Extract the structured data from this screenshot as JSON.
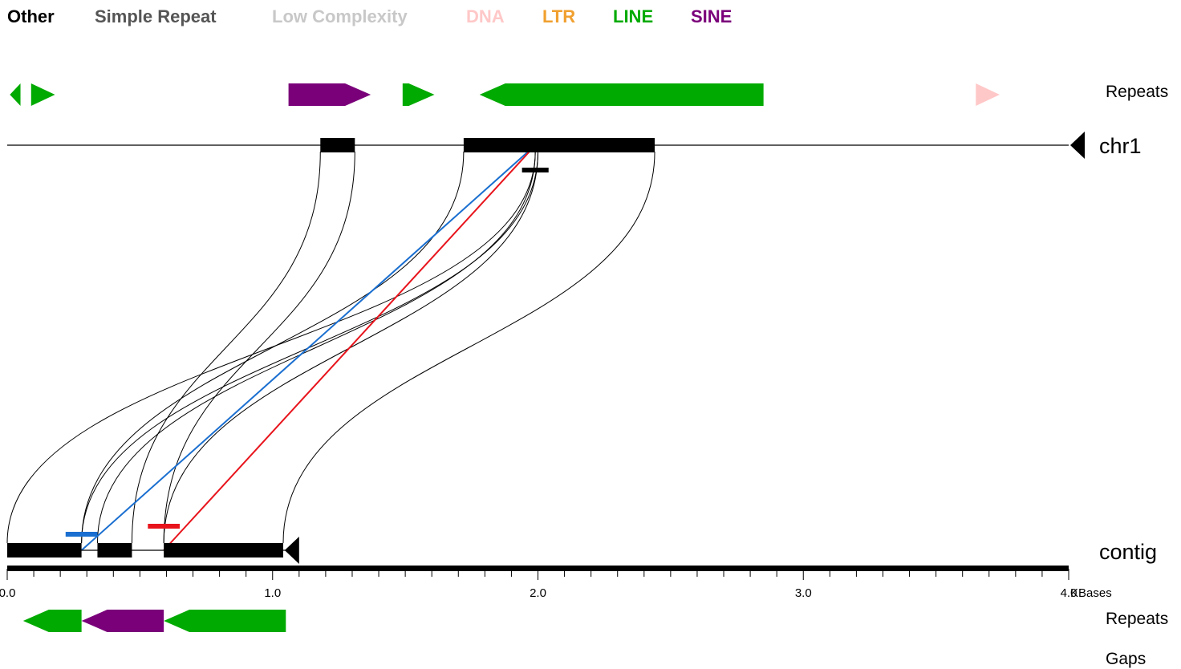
{
  "legend": [
    {
      "label": "Other",
      "color": "#000000"
    },
    {
      "label": "Simple Repeat",
      "color": "#555555"
    },
    {
      "label": "Low Complexity",
      "color": "#c8c8c8"
    },
    {
      "label": "DNA",
      "color": "#ffc8c8"
    },
    {
      "label": "LTR",
      "color": "#f0a030"
    },
    {
      "label": "LINE",
      "color": "#00aa00"
    },
    {
      "label": "SINE",
      "color": "#7a007a"
    }
  ],
  "tracks": {
    "top_repeats_label": "Repeats",
    "chr1_label": "chr1",
    "contig_label": "contig",
    "bottom_repeats_label": "Repeats",
    "gaps_label": "Gaps"
  },
  "axis": {
    "unit": "KBases",
    "start": 0.0,
    "end": 4.0,
    "major_ticks": [
      {
        "value": 0.0,
        "label": "0.0"
      },
      {
        "value": 1.0,
        "label": "1.0"
      },
      {
        "value": 2.0,
        "label": "2.0"
      },
      {
        "value": 3.0,
        "label": "3.0"
      },
      {
        "value": 4.0,
        "label": "4.0"
      }
    ],
    "minor_step": 0.1
  },
  "chart_data": {
    "type": "genome-alignment",
    "chr1": {
      "orientation": "reverse",
      "repeats": [
        {
          "start": 0.01,
          "end": 0.05,
          "strand": "-",
          "class": "LINE"
        },
        {
          "start": 0.09,
          "end": 0.18,
          "strand": "+",
          "class": "LINE"
        },
        {
          "start": 1.06,
          "end": 1.37,
          "strand": "+",
          "class": "SINE"
        },
        {
          "start": 1.49,
          "end": 1.61,
          "strand": "+",
          "class": "LINE"
        },
        {
          "start": 1.78,
          "end": 2.85,
          "strand": "-",
          "class": "LINE"
        },
        {
          "start": 3.65,
          "end": 3.74,
          "strand": "+",
          "class": "DNA"
        }
      ],
      "blocks": [
        {
          "start": 1.18,
          "end": 1.31
        },
        {
          "start": 1.72,
          "end": 2.44
        }
      ],
      "marker": {
        "start": 1.94,
        "end": 2.04,
        "color": "#000000"
      }
    },
    "contig": {
      "orientation": "reverse",
      "end": 1.1,
      "blocks": [
        {
          "start": 0.0,
          "end": 0.28
        },
        {
          "start": 0.34,
          "end": 0.47
        },
        {
          "start": 0.59,
          "end": 1.04
        }
      ],
      "markers": [
        {
          "start": 0.22,
          "end": 0.34,
          "color": "#1a6fd0"
        },
        {
          "start": 0.53,
          "end": 0.65,
          "color": "#e8141c"
        }
      ],
      "repeats": [
        {
          "start": 0.06,
          "end": 0.28,
          "strand": "-",
          "class": "LINE"
        },
        {
          "start": 0.28,
          "end": 0.59,
          "strand": "-",
          "class": "SINE"
        },
        {
          "start": 0.59,
          "end": 1.05,
          "strand": "-",
          "class": "LINE"
        }
      ]
    },
    "links": [
      {
        "chr1": 1.18,
        "contig": 0.47
      },
      {
        "chr1": 1.31,
        "contig": 0.59
      },
      {
        "chr1": 1.72,
        "contig": 0.28
      },
      {
        "chr1": 1.99,
        "contig": 0.34
      },
      {
        "chr1": 1.99,
        "contig": 0.0
      },
      {
        "chr1": 2.0,
        "contig": 0.28
      },
      {
        "chr1": 2.0,
        "contig": 0.59
      },
      {
        "chr1": 2.44,
        "contig": 1.04
      }
    ],
    "diagonals": [
      {
        "chr1": 1.99,
        "contig": 0.28,
        "color": "#1a6fd0"
      },
      {
        "chr1": 1.99,
        "contig": 0.59,
        "color": "#e8141c"
      }
    ]
  }
}
